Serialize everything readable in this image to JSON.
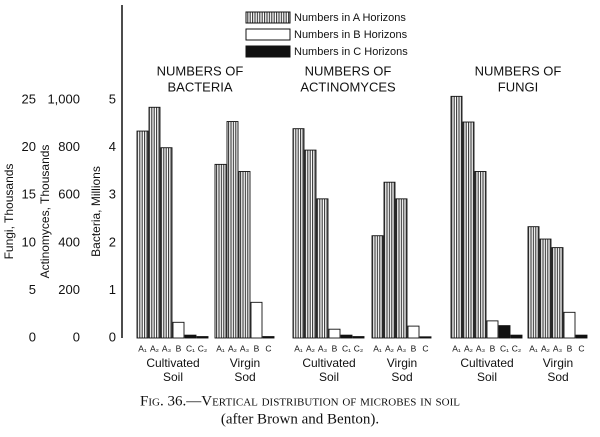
{
  "chart_data": {
    "type": "bar",
    "caption": [
      "Fig. 36.—Vertical distribution of microbes in soil",
      "(after Brown and Benton)."
    ],
    "series": [
      {
        "name": "Numbers in A Horizons",
        "color": "#333333",
        "hatch": true
      },
      {
        "name": "Numbers in B Horizons",
        "color": "#ffffff",
        "hatch": false
      },
      {
        "name": "Numbers in C Horizons",
        "color": "#111111",
        "hatch": false
      }
    ],
    "axes": [
      {
        "label": "Fungi, Thousands",
        "ylim": [
          0,
          35
        ],
        "yticks": [
          0,
          5,
          10,
          15,
          20,
          25
        ]
      },
      {
        "label": "Actinomyces, Thousands",
        "ylim": [
          0,
          1400
        ],
        "yticks": [
          0,
          200,
          400,
          600,
          800,
          {
            "value": 1000,
            "label": "1,000"
          }
        ]
      },
      {
        "label": "Bacteria, Millions",
        "ylim": [
          0,
          7
        ],
        "yticks": [
          0,
          1,
          2,
          3,
          4,
          5
        ]
      }
    ],
    "panels": [
      {
        "title": [
          "NUMBERS OF",
          "BACTERIA"
        ],
        "axis": 2,
        "groups": [
          {
            "label": [
              "Cultivated",
              "Soil"
            ],
            "categories": [
              "A₁",
              "A₂",
              "A₃",
              "B",
              "C₁",
              "C₂"
            ],
            "values": [
              4.35,
              4.85,
              4.0,
              0.33,
              0.06,
              0.03
            ],
            "series_index": [
              0,
              0,
              0,
              1,
              2,
              2
            ]
          },
          {
            "label": [
              "Virgin",
              "Sod"
            ],
            "categories": [
              "A₁",
              "A₂",
              "A₃",
              "B",
              "C"
            ],
            "values": [
              3.65,
              4.55,
              3.5,
              0.75,
              0.03
            ],
            "series_index": [
              0,
              0,
              0,
              1,
              2
            ]
          }
        ]
      },
      {
        "title": [
          "NUMBERS OF",
          "ACTINOMYCES"
        ],
        "axis": 1,
        "groups": [
          {
            "label": [
              "Cultivated",
              "Soil"
            ],
            "categories": [
              "A₁",
              "A₂",
              "A₃",
              "B",
              "C₁",
              "C₂"
            ],
            "values": [
              880,
              790,
              585,
              37,
              12,
              6
            ],
            "series_index": [
              0,
              0,
              0,
              1,
              2,
              2
            ]
          },
          {
            "label": [
              "Virgin",
              "Sod"
            ],
            "categories": [
              "A₁",
              "A₂",
              "A₃",
              "B",
              "C"
            ],
            "values": [
              430,
              655,
              585,
              50,
              5
            ],
            "series_index": [
              0,
              0,
              0,
              1,
              2
            ]
          }
        ]
      },
      {
        "title": [
          "NUMBERS OF",
          "FUNGI"
        ],
        "axis": 0,
        "groups": [
          {
            "label": [
              "Cultivated",
              "Soil"
            ],
            "categories": [
              "A₁",
              "A₂",
              "A₃",
              "B",
              "C₁",
              "C₂"
            ],
            "values": [
              25.4,
              22.7,
              17.5,
              1.8,
              1.3,
              0.3
            ],
            "series_index": [
              0,
              0,
              0,
              1,
              2,
              2
            ]
          },
          {
            "label": [
              "Virgin",
              "Sod"
            ],
            "categories": [
              "A₁",
              "A₂",
              "A₃",
              "B",
              "C"
            ],
            "values": [
              11.7,
              10.4,
              9.5,
              2.7,
              0.3
            ],
            "series_index": [
              0,
              0,
              0,
              1,
              2
            ]
          }
        ]
      }
    ]
  }
}
